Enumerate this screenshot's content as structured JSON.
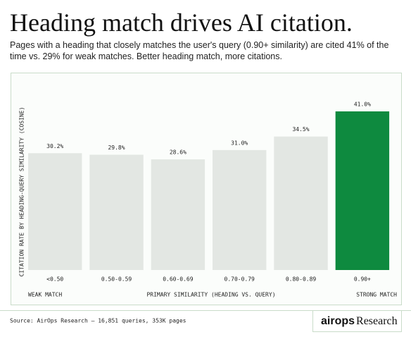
{
  "chart_data": {
    "type": "bar",
    "title": "Heading match drives AI citation.",
    "subtitle": "Pages with a heading that closely matches the user's query (0.90+ similarity) are cited 41% of the time vs. 29% for weak matches. Better heading match, more citations.",
    "y_label": "CITATION RATE BY HEADING-QUERY SIMILARITY (COSINE)",
    "x_label": "PRIMARY SIMILARITY (HEADING VS. QUERY)",
    "x_left_label": "WEAK MATCH",
    "x_right_label": "STRONG MATCH",
    "categories": [
      "<0.50",
      "0.50-0.59",
      "0.60-0.69",
      "0.70-0.79",
      "0.80-0.89",
      "0.90+"
    ],
    "values": [
      30.2,
      29.8,
      28.6,
      31.0,
      34.5,
      41.0
    ],
    "value_labels": [
      "30.2%",
      "29.8%",
      "28.6%",
      "31.0%",
      "34.5%",
      "41.0%"
    ],
    "colors": [
      "#e3e7e3",
      "#e3e7e3",
      "#e3e7e3",
      "#e3e7e3",
      "#e3e7e3",
      "#0e8a3f"
    ],
    "source": "Source: AirOps Research — 16,851 queries, 353K pages",
    "logo": {
      "brand": "airops",
      "suffix": "Research"
    }
  }
}
